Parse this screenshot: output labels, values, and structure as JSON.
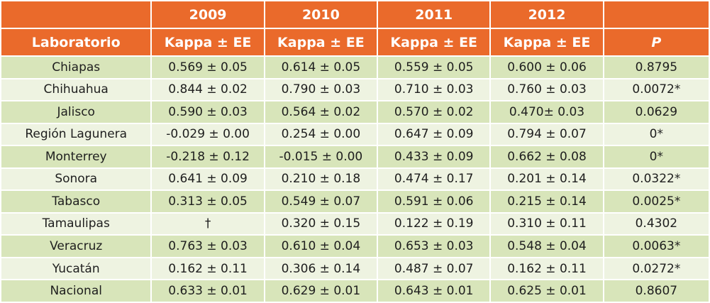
{
  "header": {
    "years": [
      "2009",
      "2010",
      "2011",
      "2012"
    ],
    "lab_label": "Laboratorio",
    "kappa_label": "Kappa ± EE",
    "p_label": "P"
  },
  "rows": [
    {
      "lab": "Chiapas",
      "k2009": "0.569 ± 0.05",
      "k2010": "0.614 ± 0.05",
      "k2011": "0.559 ± 0.05",
      "k2012": "0.600 ± 0.06",
      "p": "0.8795"
    },
    {
      "lab": "Chihuahua",
      "k2009": "0.844 ± 0.02",
      "k2010": "0.790 ± 0.03",
      "k2011": "0.710 ± 0.03",
      "k2012": "0.760 ± 0.03",
      "p": "0.0072*"
    },
    {
      "lab": "Jalisco",
      "k2009": "0.590 ± 0.03",
      "k2010": "0.564 ± 0.02",
      "k2011": "0.570 ± 0.02",
      "k2012": "0.470± 0.03",
      "p": "0.0629"
    },
    {
      "lab": "Región Lagunera",
      "k2009": "-0.029 ± 0.00",
      "k2010": "0.254 ± 0.00",
      "k2011": "0.647 ± 0.09",
      "k2012": "0.794 ± 0.07",
      "p": "0*"
    },
    {
      "lab": "Monterrey",
      "k2009": "-0.218 ± 0.12",
      "k2010": "-0.015 ± 0.00",
      "k2011": "0.433 ± 0.09",
      "k2012": "0.662 ± 0.08",
      "p": "0*"
    },
    {
      "lab": "Sonora",
      "k2009": "0.641 ± 0.09",
      "k2010": "0.210 ± 0.18",
      "k2011": "0.474 ± 0.17",
      "k2012": "0.201 ± 0.14",
      "p": "0.0322*"
    },
    {
      "lab": "Tabasco",
      "k2009": "0.313 ± 0.05",
      "k2010": "0.549 ± 0.07",
      "k2011": "0.591 ± 0.06",
      "k2012": "0.215 ± 0.14",
      "p": "0.0025*"
    },
    {
      "lab": "Tamaulipas",
      "k2009": "†",
      "k2010": "0.320 ± 0.15",
      "k2011": "0.122 ± 0.19",
      "k2012": "0.310 ± 0.11",
      "p": "0.4302"
    },
    {
      "lab": "Veracruz",
      "k2009": "0.763 ± 0.03",
      "k2010": "0.610 ± 0.04",
      "k2011": "0.653 ± 0.03",
      "k2012": "0.548 ± 0.04",
      "p": "0.0063*"
    },
    {
      "lab": "Yucatán",
      "k2009": "0.162 ± 0.11",
      "k2010": "0.306 ± 0.14",
      "k2011": "0.487 ± 0.07",
      "k2012": "0.162 ± 0.11",
      "p": "0.0272*"
    },
    {
      "lab": "Nacional",
      "k2009": "0.633 ± 0.01",
      "k2010": "0.629 ± 0.01",
      "k2011": "0.643 ± 0.01",
      "k2012": "0.625 ± 0.01",
      "p": "0.8607"
    }
  ],
  "colors": {
    "header": "#ea6a2b",
    "row_odd": "#d8e5ba",
    "row_even": "#eef3e1"
  }
}
